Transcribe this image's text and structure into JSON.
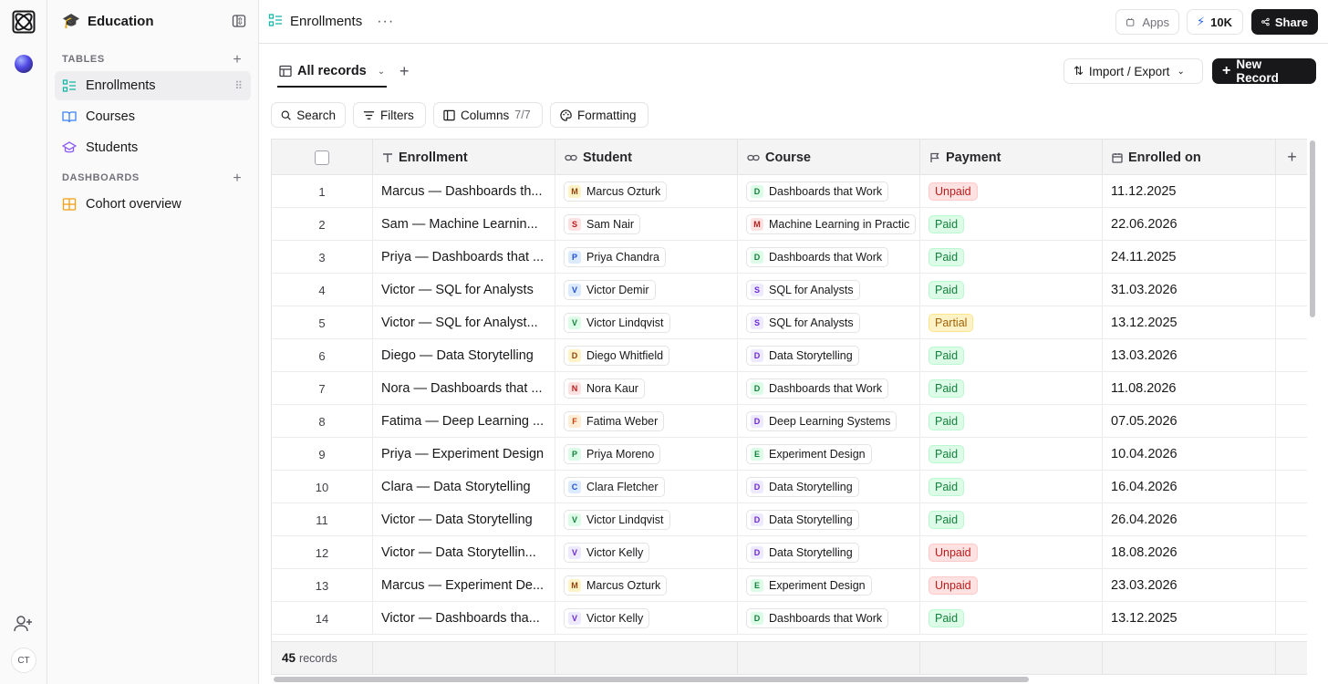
{
  "rail": {
    "avatar_initials": "CT"
  },
  "workspace": {
    "name": "Education",
    "icon": "graduation-cap-icon"
  },
  "sidebar": {
    "tables_title": "TABLES",
    "tables": [
      {
        "label": "Enrollments",
        "icon": "list-check-icon",
        "active": true
      },
      {
        "label": "Courses",
        "icon": "book-open-icon"
      },
      {
        "label": "Students",
        "icon": "graduation-cap-icon"
      }
    ],
    "dashboards_title": "DASHBOARDS",
    "dashboards": [
      {
        "label": "Cohort overview",
        "icon": "grid-icon"
      }
    ]
  },
  "topbar": {
    "title": "Enrollments",
    "apps_label": "Apps",
    "count_label": "10K",
    "share_label": "Share"
  },
  "view": {
    "label": "All records",
    "import_export_label": "Import / Export",
    "new_record_label": "New Record"
  },
  "toolbar": {
    "search_label": "Search",
    "filters_label": "Filters",
    "columns_label": "Columns",
    "columns_count": "7/7",
    "formatting_label": "Formatting"
  },
  "columns": [
    "Enrollment",
    "Student",
    "Course",
    "Payment",
    "Enrolled on"
  ],
  "colors": {
    "M": [
      "#fef3c7",
      "#92400e"
    ],
    "S": [
      "#fee2e2",
      "#b91c1c"
    ],
    "P": [
      "#dbeafe",
      "#1d4ed8"
    ],
    "V": [
      "#ede9fe",
      "#6d28d9"
    ],
    "D": [
      "#dcfce7",
      "#15803d"
    ],
    "N": [
      "#fee2e2",
      "#b91c1c"
    ],
    "F": [
      "#ffedd5",
      "#c2410c"
    ],
    "C": [
      "#dbeafe",
      "#1d4ed8"
    ],
    "E": [
      "#dcfce7",
      "#15803d"
    ]
  },
  "rows": [
    {
      "num": "1",
      "enrollment": "Marcus — Dashboards th...",
      "student": "Marcus Ozturk",
      "student_init": "M",
      "student_col": "M",
      "course": "Dashboards that Work",
      "course_init": "D",
      "course_col": "D",
      "payment": "Unpaid",
      "date": "11.12.2025"
    },
    {
      "num": "2",
      "enrollment": "Sam — Machine Learnin...",
      "student": "Sam Nair",
      "student_init": "S",
      "student_col": "S",
      "course": "Machine Learning in Practic",
      "course_init": "M",
      "course_col": "N",
      "payment": "Paid",
      "date": "22.06.2026"
    },
    {
      "num": "3",
      "enrollment": "Priya — Dashboards that ...",
      "student": "Priya Chandra",
      "student_init": "P",
      "student_col": "P",
      "course": "Dashboards that Work",
      "course_init": "D",
      "course_col": "D",
      "payment": "Paid",
      "date": "24.11.2025"
    },
    {
      "num": "4",
      "enrollment": "Victor — SQL for Analysts",
      "student": "Victor Demir",
      "student_init": "V",
      "student_col": "P",
      "course": "SQL for Analysts",
      "course_init": "S",
      "course_col": "V",
      "payment": "Paid",
      "date": "31.03.2026"
    },
    {
      "num": "5",
      "enrollment": "Victor — SQL for Analyst...",
      "student": "Victor Lindqvist",
      "student_init": "V",
      "student_col": "D",
      "course": "SQL for Analysts",
      "course_init": "S",
      "course_col": "V",
      "payment": "Partial",
      "date": "13.12.2025"
    },
    {
      "num": "6",
      "enrollment": "Diego — Data Storytelling",
      "student": "Diego Whitfield",
      "student_init": "D",
      "student_col": "M",
      "course": "Data Storytelling",
      "course_init": "D",
      "course_col": "V",
      "payment": "Paid",
      "date": "13.03.2026"
    },
    {
      "num": "7",
      "enrollment": "Nora — Dashboards that ...",
      "student": "Nora Kaur",
      "student_init": "N",
      "student_col": "N",
      "course": "Dashboards that Work",
      "course_init": "D",
      "course_col": "D",
      "payment": "Paid",
      "date": "11.08.2026"
    },
    {
      "num": "8",
      "enrollment": "Fatima — Deep Learning ...",
      "student": "Fatima Weber",
      "student_init": "F",
      "student_col": "F",
      "course": "Deep Learning Systems",
      "course_init": "D",
      "course_col": "V",
      "payment": "Paid",
      "date": "07.05.2026"
    },
    {
      "num": "9",
      "enrollment": "Priya — Experiment Design",
      "student": "Priya Moreno",
      "student_init": "P",
      "student_col": "D",
      "course": "Experiment Design",
      "course_init": "E",
      "course_col": "E",
      "payment": "Paid",
      "date": "10.04.2026"
    },
    {
      "num": "10",
      "enrollment": "Clara — Data Storytelling",
      "student": "Clara Fletcher",
      "student_init": "C",
      "student_col": "C",
      "course": "Data Storytelling",
      "course_init": "D",
      "course_col": "V",
      "payment": "Paid",
      "date": "16.04.2026"
    },
    {
      "num": "11",
      "enrollment": "Victor — Data Storytelling",
      "student": "Victor Lindqvist",
      "student_init": "V",
      "student_col": "D",
      "course": "Data Storytelling",
      "course_init": "D",
      "course_col": "V",
      "payment": "Paid",
      "date": "26.04.2026"
    },
    {
      "num": "12",
      "enrollment": "Victor — Data Storytellin...",
      "student": "Victor Kelly",
      "student_init": "V",
      "student_col": "V",
      "course": "Data Storytelling",
      "course_init": "D",
      "course_col": "V",
      "payment": "Unpaid",
      "date": "18.08.2026"
    },
    {
      "num": "13",
      "enrollment": "Marcus — Experiment De...",
      "student": "Marcus Ozturk",
      "student_init": "M",
      "student_col": "M",
      "course": "Experiment Design",
      "course_init": "E",
      "course_col": "E",
      "payment": "Unpaid",
      "date": "23.03.2026"
    },
    {
      "num": "14",
      "enrollment": "Victor — Dashboards tha...",
      "student": "Victor Kelly",
      "student_init": "V",
      "student_col": "V",
      "course": "Dashboards that Work",
      "course_init": "D",
      "course_col": "D",
      "payment": "Paid",
      "date": "13.12.2025"
    }
  ],
  "footer": {
    "count": "45",
    "count_label": "records"
  }
}
